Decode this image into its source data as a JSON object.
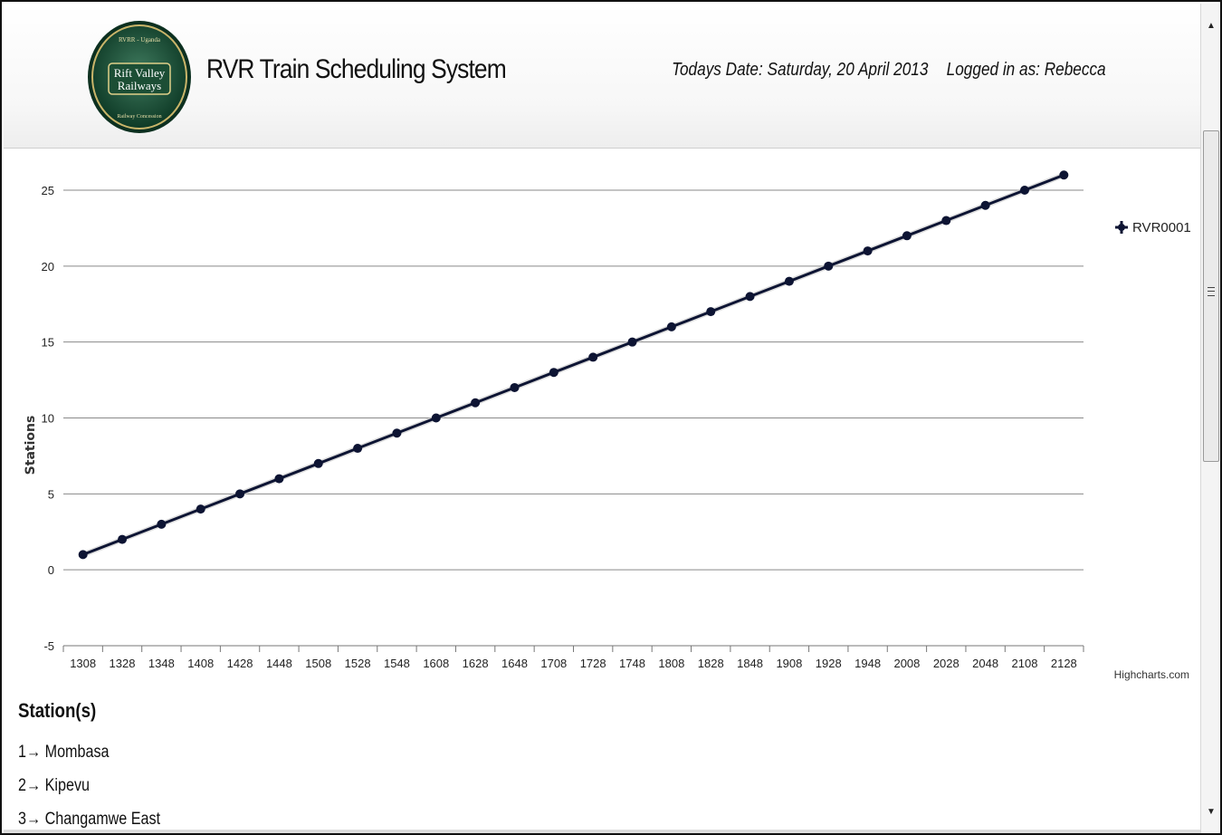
{
  "header": {
    "app_title": "RVR Train Scheduling System",
    "date_text": "Todays Date: Saturday, 20 April 2013",
    "user_text": "Logged in as: Rebecca",
    "logo": {
      "top_text": "RVRR - Uganda",
      "main_line1": "Rift Valley",
      "main_line2": "Railways",
      "bottom_text": "Railway Concession"
    }
  },
  "chart_data": {
    "type": "line",
    "categories": [
      "1308",
      "1328",
      "1348",
      "1408",
      "1428",
      "1448",
      "1508",
      "1528",
      "1548",
      "1608",
      "1628",
      "1648",
      "1708",
      "1728",
      "1748",
      "1808",
      "1828",
      "1848",
      "1908",
      "1928",
      "1948",
      "2008",
      "2028",
      "2048",
      "2108",
      "2128"
    ],
    "series": [
      {
        "name": "RVR0001",
        "values": [
          1,
          2,
          3,
          4,
          5,
          6,
          7,
          8,
          9,
          10,
          11,
          12,
          13,
          14,
          15,
          16,
          17,
          18,
          19,
          20,
          21,
          22,
          23,
          24,
          25,
          26
        ],
        "color": "#0d1433"
      }
    ],
    "ylabel": "Stations",
    "xlabel": "",
    "ylim": [
      -5,
      25
    ],
    "yticks": [
      -5,
      0,
      5,
      10,
      15,
      20,
      25
    ],
    "grid": true,
    "legend": "right",
    "credits": "Highcharts.com"
  },
  "stations": {
    "heading": "Station(s)",
    "items": [
      "1→ Mombasa",
      "2→ Kipevu",
      "3→ Changamwe East"
    ]
  }
}
